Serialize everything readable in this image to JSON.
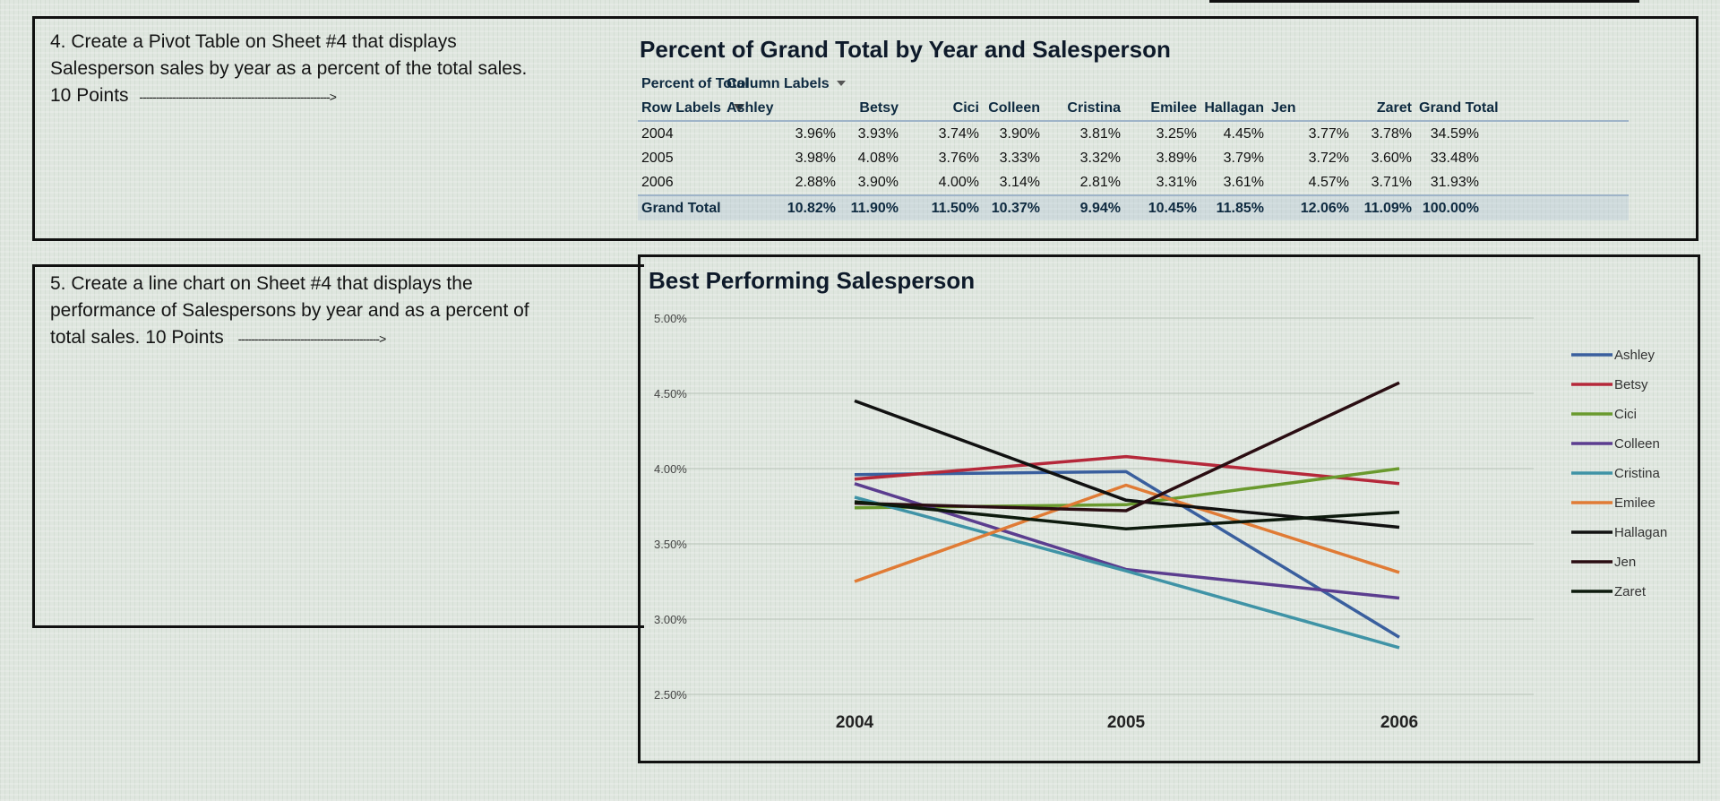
{
  "task4": {
    "line1": "4. Create a Pivot Table on Sheet #4 that displays",
    "line2": "Salesperson sales by year as a percent of the total sales.",
    "line3": "10 Points",
    "arrow": "---------------------------------------------------------->"
  },
  "task5": {
    "line1": "5. Create a line chart on Sheet #4 that displays the",
    "line2": "performance of Salespersons by year and as a percent of",
    "line3": "total sales. 10 Points",
    "arrow": "------------------------------------------->"
  },
  "pivot": {
    "title": "Percent of Grand Total by Year and Salesperson",
    "value_label": "Percent of Total",
    "column_labels": "Column Labels",
    "row_labels": "Row Labels",
    "columns": [
      "Ashley",
      "Betsy",
      "Cici",
      "Colleen",
      "Cristina",
      "Emilee",
      "Hallagan",
      "Jen",
      "Zaret",
      "Grand Total"
    ],
    "rows": [
      {
        "label": "2004",
        "values": [
          "3.96%",
          "3.93%",
          "3.74%",
          "3.90%",
          "3.81%",
          "3.25%",
          "4.45%",
          "3.77%",
          "3.78%",
          "34.59%"
        ]
      },
      {
        "label": "2005",
        "values": [
          "3.98%",
          "4.08%",
          "3.76%",
          "3.33%",
          "3.32%",
          "3.89%",
          "3.79%",
          "3.72%",
          "3.60%",
          "33.48%"
        ]
      },
      {
        "label": "2006",
        "values": [
          "2.88%",
          "3.90%",
          "4.00%",
          "3.14%",
          "2.81%",
          "3.31%",
          "3.61%",
          "4.57%",
          "3.71%",
          "31.93%"
        ]
      }
    ],
    "total": {
      "label": "Grand Total",
      "values": [
        "10.82%",
        "11.90%",
        "11.50%",
        "10.37%",
        "9.94%",
        "10.45%",
        "11.85%",
        "12.06%",
        "11.09%",
        "100.00%"
      ]
    }
  },
  "chart_data": {
    "type": "line",
    "title": "Best Performing Salesperson",
    "categories": [
      "2004",
      "2005",
      "2006"
    ],
    "ylim": [
      2.5,
      5.0
    ],
    "yticks": [
      "5.00%",
      "4.50%",
      "4.00%",
      "3.50%",
      "3.00%",
      "2.50%"
    ],
    "ytick_values": [
      5.0,
      4.5,
      4.0,
      3.5,
      3.0,
      2.5
    ],
    "legend_position": "right",
    "series": [
      {
        "name": "Ashley",
        "color": "#3a5f9e",
        "values": [
          3.96,
          3.98,
          2.88
        ]
      },
      {
        "name": "Betsy",
        "color": "#b5283a",
        "values": [
          3.93,
          4.08,
          3.9
        ]
      },
      {
        "name": "Cici",
        "color": "#6a9a2e",
        "values": [
          3.74,
          3.76,
          4.0
        ]
      },
      {
        "name": "Colleen",
        "color": "#5b3d8f",
        "values": [
          3.9,
          3.33,
          3.14
        ]
      },
      {
        "name": "Cristina",
        "color": "#3f93a6",
        "values": [
          3.81,
          3.32,
          2.81
        ]
      },
      {
        "name": "Emilee",
        "color": "#e07b35",
        "values": [
          3.25,
          3.89,
          3.31
        ]
      },
      {
        "name": "Hallagan",
        "color": "#111111",
        "values": [
          4.45,
          3.79,
          3.61
        ]
      },
      {
        "name": "Jen",
        "color": "#2a0d12",
        "values": [
          3.77,
          3.72,
          4.57
        ]
      },
      {
        "name": "Zaret",
        "color": "#0d1a0d",
        "values": [
          3.78,
          3.6,
          3.71
        ]
      }
    ]
  }
}
